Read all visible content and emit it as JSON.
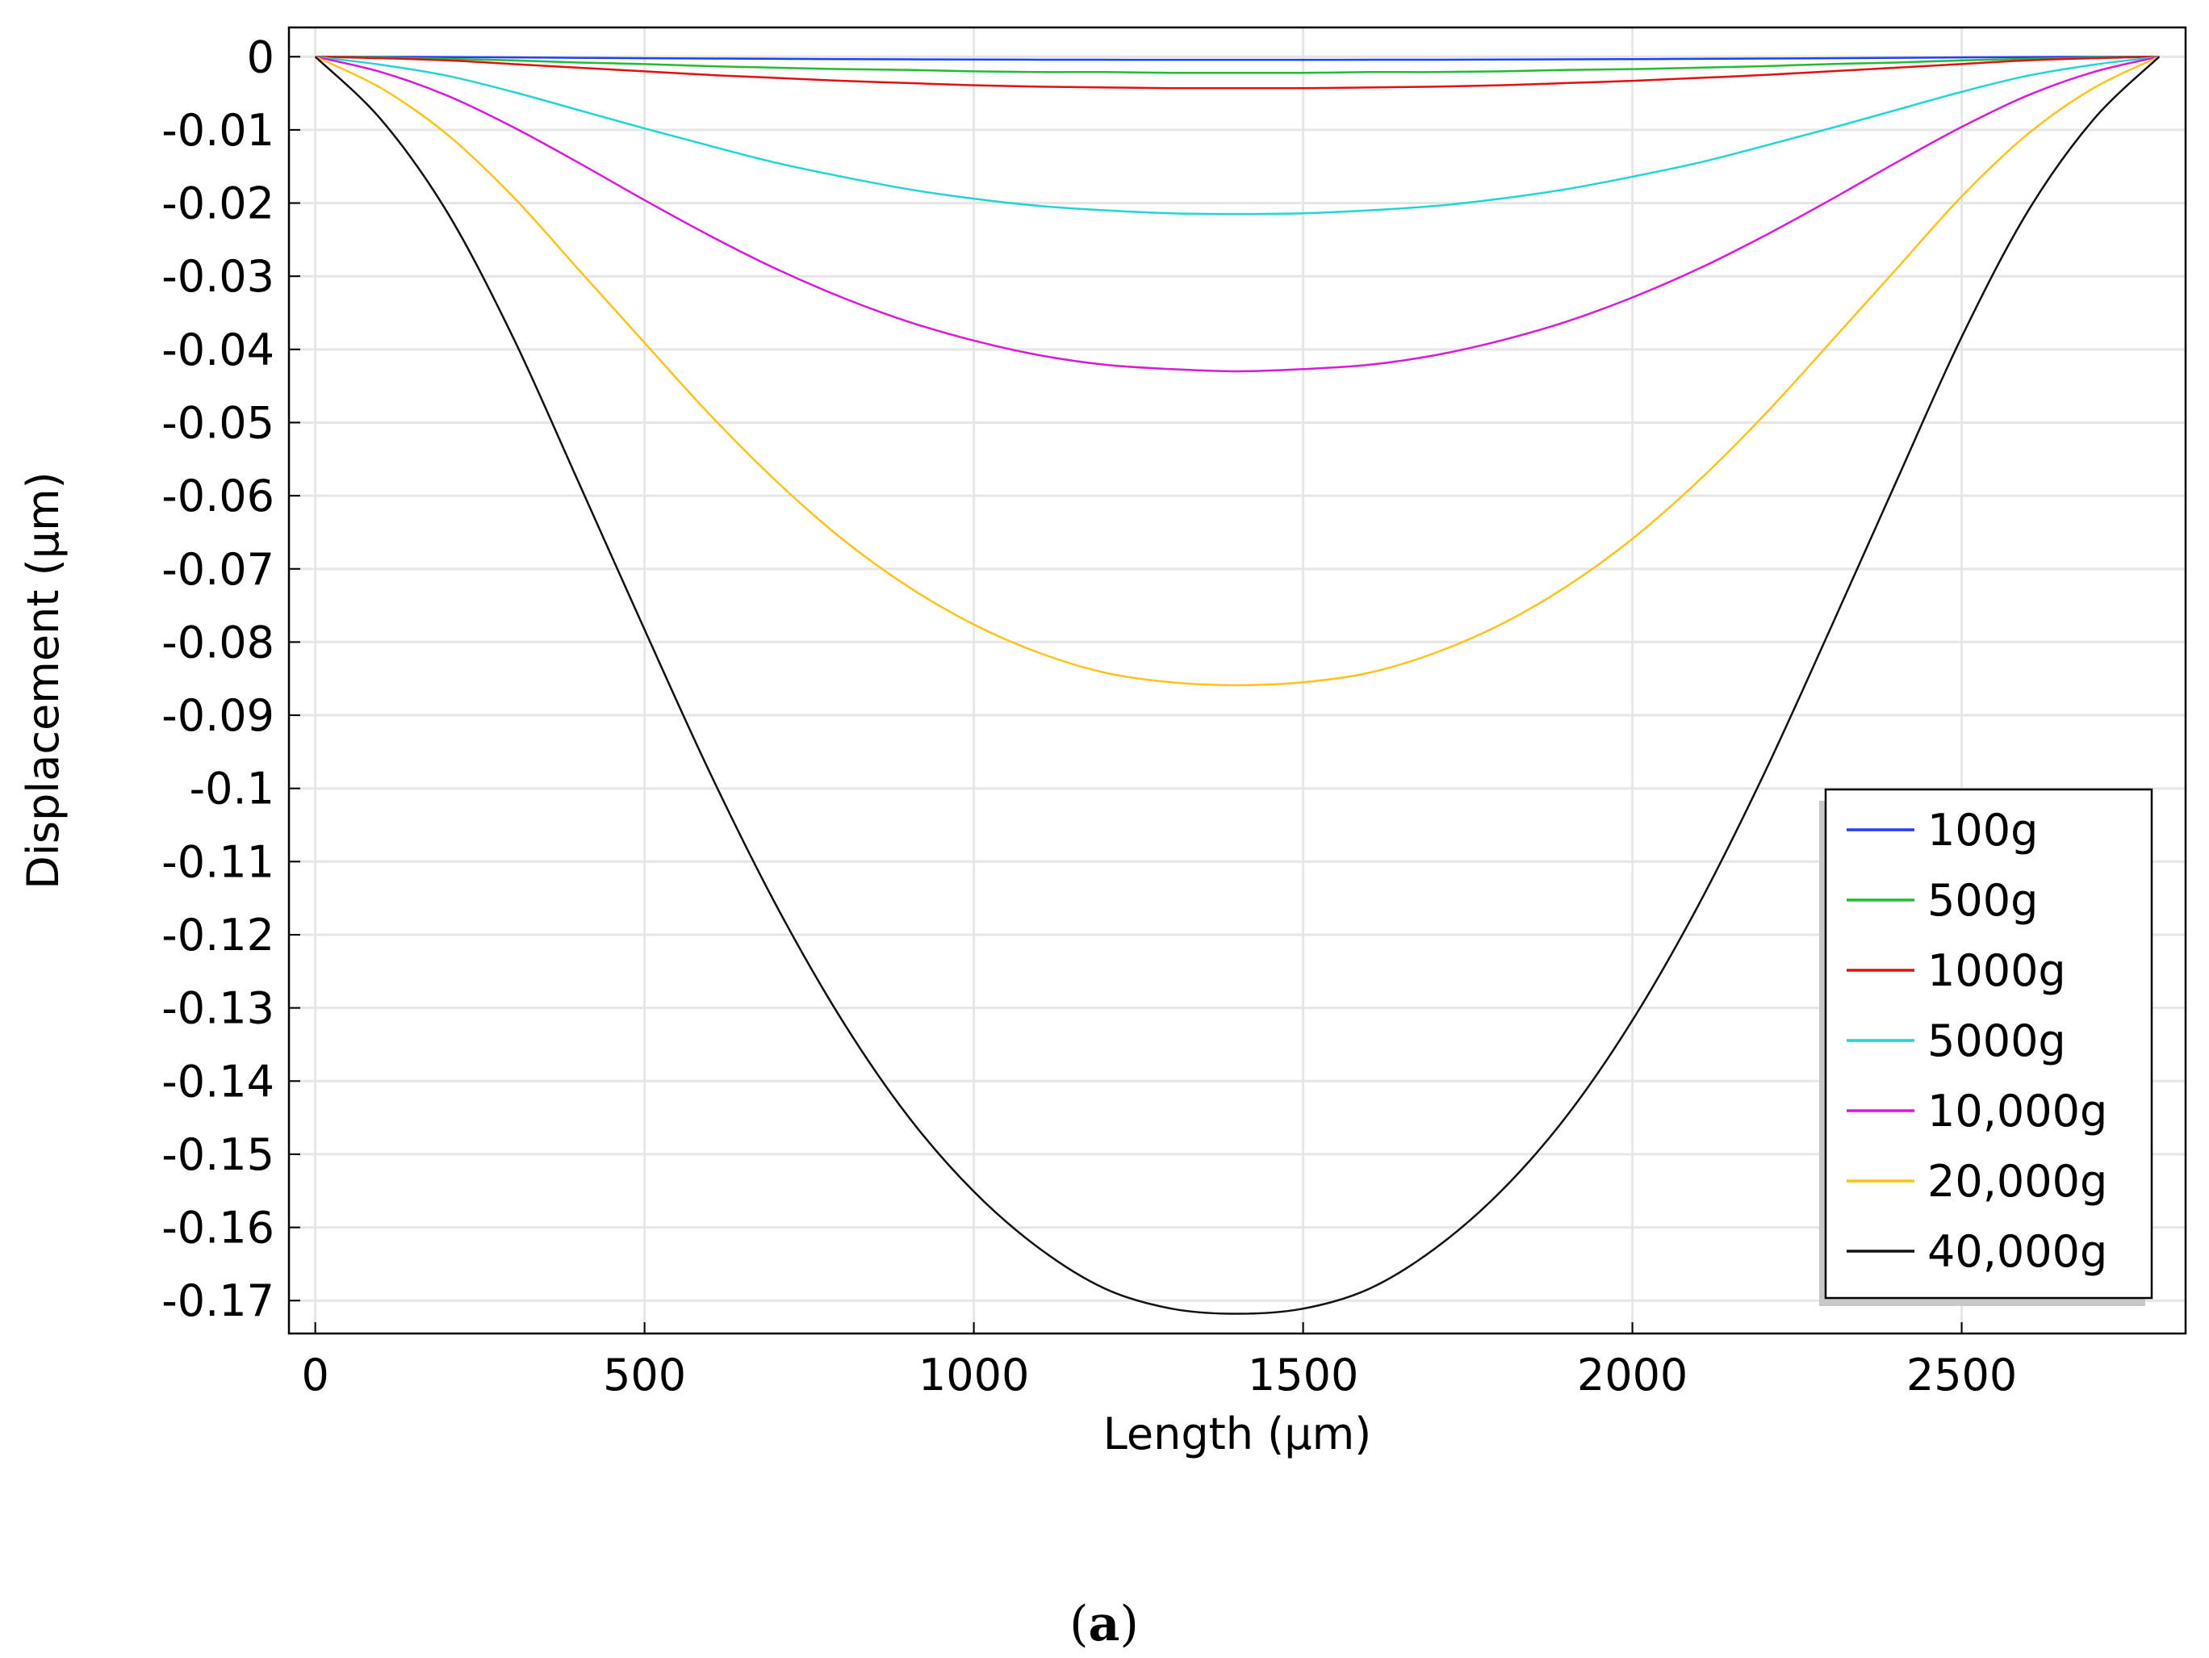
{
  "chart_data": {
    "type": "line",
    "xlabel": "Length (μm)",
    "ylabel": "Displacement (μm)",
    "xlim": [
      -40,
      2840
    ],
    "ylim": [
      -0.1745,
      0.004
    ],
    "grid": true,
    "x_ticks": [
      0,
      500,
      1000,
      1500,
      2000,
      2500
    ],
    "x_tick_labels": [
      "0",
      "500",
      "1000",
      "1500",
      "2000",
      "2500"
    ],
    "y_ticks": [
      0,
      -0.01,
      -0.02,
      -0.03,
      -0.04,
      -0.05,
      -0.06,
      -0.07,
      -0.08,
      -0.09,
      -0.1,
      -0.11,
      -0.12,
      -0.13,
      -0.14,
      -0.15,
      -0.16,
      -0.17
    ],
    "y_tick_labels": [
      "0",
      "-0.01",
      "-0.02",
      "-0.03",
      "-0.04",
      "-0.05",
      "-0.06",
      "-0.07",
      "-0.08",
      "-0.09",
      "-0.1",
      "-0.11",
      "-0.12",
      "-0.13",
      "-0.14",
      "-0.15",
      "-0.16",
      "-0.17"
    ],
    "legend_position": "bottom-right",
    "x": [
      0,
      100,
      200,
      300,
      400,
      500,
      600,
      700,
      800,
      900,
      1000,
      1100,
      1200,
      1300,
      1400,
      1500,
      1600,
      1700,
      1800,
      1900,
      2000,
      2100,
      2200,
      2300,
      2400,
      2500,
      2600,
      2700,
      2800
    ],
    "series": [
      {
        "name": "100g",
        "color": "#1f3fff",
        "values": [
          0,
          -2e-05,
          -5e-05,
          -0.0001,
          -0.00015,
          -0.0002,
          -0.00025,
          -0.00029,
          -0.00033,
          -0.00036,
          -0.00039,
          -0.00041,
          -0.00042,
          -0.00043,
          -0.00043,
          -0.00043,
          -0.00042,
          -0.00041,
          -0.00039,
          -0.00036,
          -0.00033,
          -0.00029,
          -0.00025,
          -0.0002,
          -0.00015,
          -0.0001,
          -5e-05,
          -2e-05,
          0
        ]
      },
      {
        "name": "500g",
        "color": "#22bb33",
        "values": [
          0,
          -0.0001,
          -0.0003,
          -0.0005,
          -0.0008,
          -0.001,
          -0.0013,
          -0.0015,
          -0.0017,
          -0.0018,
          -0.002,
          -0.0021,
          -0.0021,
          -0.0022,
          -0.0022,
          -0.0022,
          -0.0021,
          -0.0021,
          -0.002,
          -0.0018,
          -0.0017,
          -0.0015,
          -0.0013,
          -0.001,
          -0.0008,
          -0.0005,
          -0.0003,
          -0.0001,
          0
        ]
      },
      {
        "name": "1000g",
        "color": "#e01010",
        "values": [
          0,
          -0.0002,
          -0.0005,
          -0.001,
          -0.0015,
          -0.002,
          -0.0025,
          -0.0029,
          -0.0033,
          -0.0036,
          -0.0039,
          -0.0041,
          -0.0042,
          -0.0043,
          -0.0043,
          -0.0043,
          -0.0042,
          -0.0041,
          -0.0039,
          -0.0036,
          -0.0033,
          -0.0029,
          -0.0025,
          -0.002,
          -0.0015,
          -0.001,
          -0.0005,
          -0.0002,
          0
        ]
      },
      {
        "name": "5000g",
        "color": "#22d4d4",
        "values": [
          0,
          -0.0011,
          -0.0026,
          -0.0048,
          -0.0073,
          -0.0098,
          -0.0122,
          -0.0145,
          -0.0164,
          -0.0181,
          -0.0194,
          -0.0204,
          -0.021,
          -0.0214,
          -0.0215,
          -0.0214,
          -0.021,
          -0.0204,
          -0.0194,
          -0.0181,
          -0.0164,
          -0.0145,
          -0.0122,
          -0.0098,
          -0.0073,
          -0.0048,
          -0.0026,
          -0.0011,
          0
        ]
      },
      {
        "name": "10,000g",
        "color": "#d81bd8",
        "values": [
          0,
          -0.0021,
          -0.0053,
          -0.0096,
          -0.0145,
          -0.0196,
          -0.0245,
          -0.029,
          -0.0329,
          -0.0362,
          -0.0388,
          -0.0408,
          -0.0421,
          -0.0427,
          -0.043,
          -0.0427,
          -0.0421,
          -0.0408,
          -0.0388,
          -0.0362,
          -0.0329,
          -0.029,
          -0.0245,
          -0.0196,
          -0.0145,
          -0.0096,
          -0.0053,
          -0.0021,
          0
        ]
      },
      {
        "name": "20,000g",
        "color": "#ffc21a",
        "values": [
          0,
          -0.0043,
          -0.0106,
          -0.0191,
          -0.0291,
          -0.0391,
          -0.049,
          -0.058,
          -0.0659,
          -0.0724,
          -0.0776,
          -0.0815,
          -0.0842,
          -0.0855,
          -0.0859,
          -0.0855,
          -0.0842,
          -0.0815,
          -0.0776,
          -0.0724,
          -0.0659,
          -0.058,
          -0.049,
          -0.0391,
          -0.0291,
          -0.0191,
          -0.0106,
          -0.0043,
          0
        ]
      },
      {
        "name": "40,000g",
        "color": "#111111",
        "values": [
          0,
          -0.0086,
          -0.0212,
          -0.0383,
          -0.0582,
          -0.0783,
          -0.098,
          -0.116,
          -0.1317,
          -0.1448,
          -0.1551,
          -0.1629,
          -0.1684,
          -0.1711,
          -0.1718,
          -0.1711,
          -0.1684,
          -0.1629,
          -0.1551,
          -0.1448,
          -0.1317,
          -0.116,
          -0.098,
          -0.0783,
          -0.0582,
          -0.0383,
          -0.0212,
          -0.0086,
          0
        ]
      }
    ]
  },
  "caption": {
    "open": "(",
    "label": "a",
    "close": ")"
  }
}
